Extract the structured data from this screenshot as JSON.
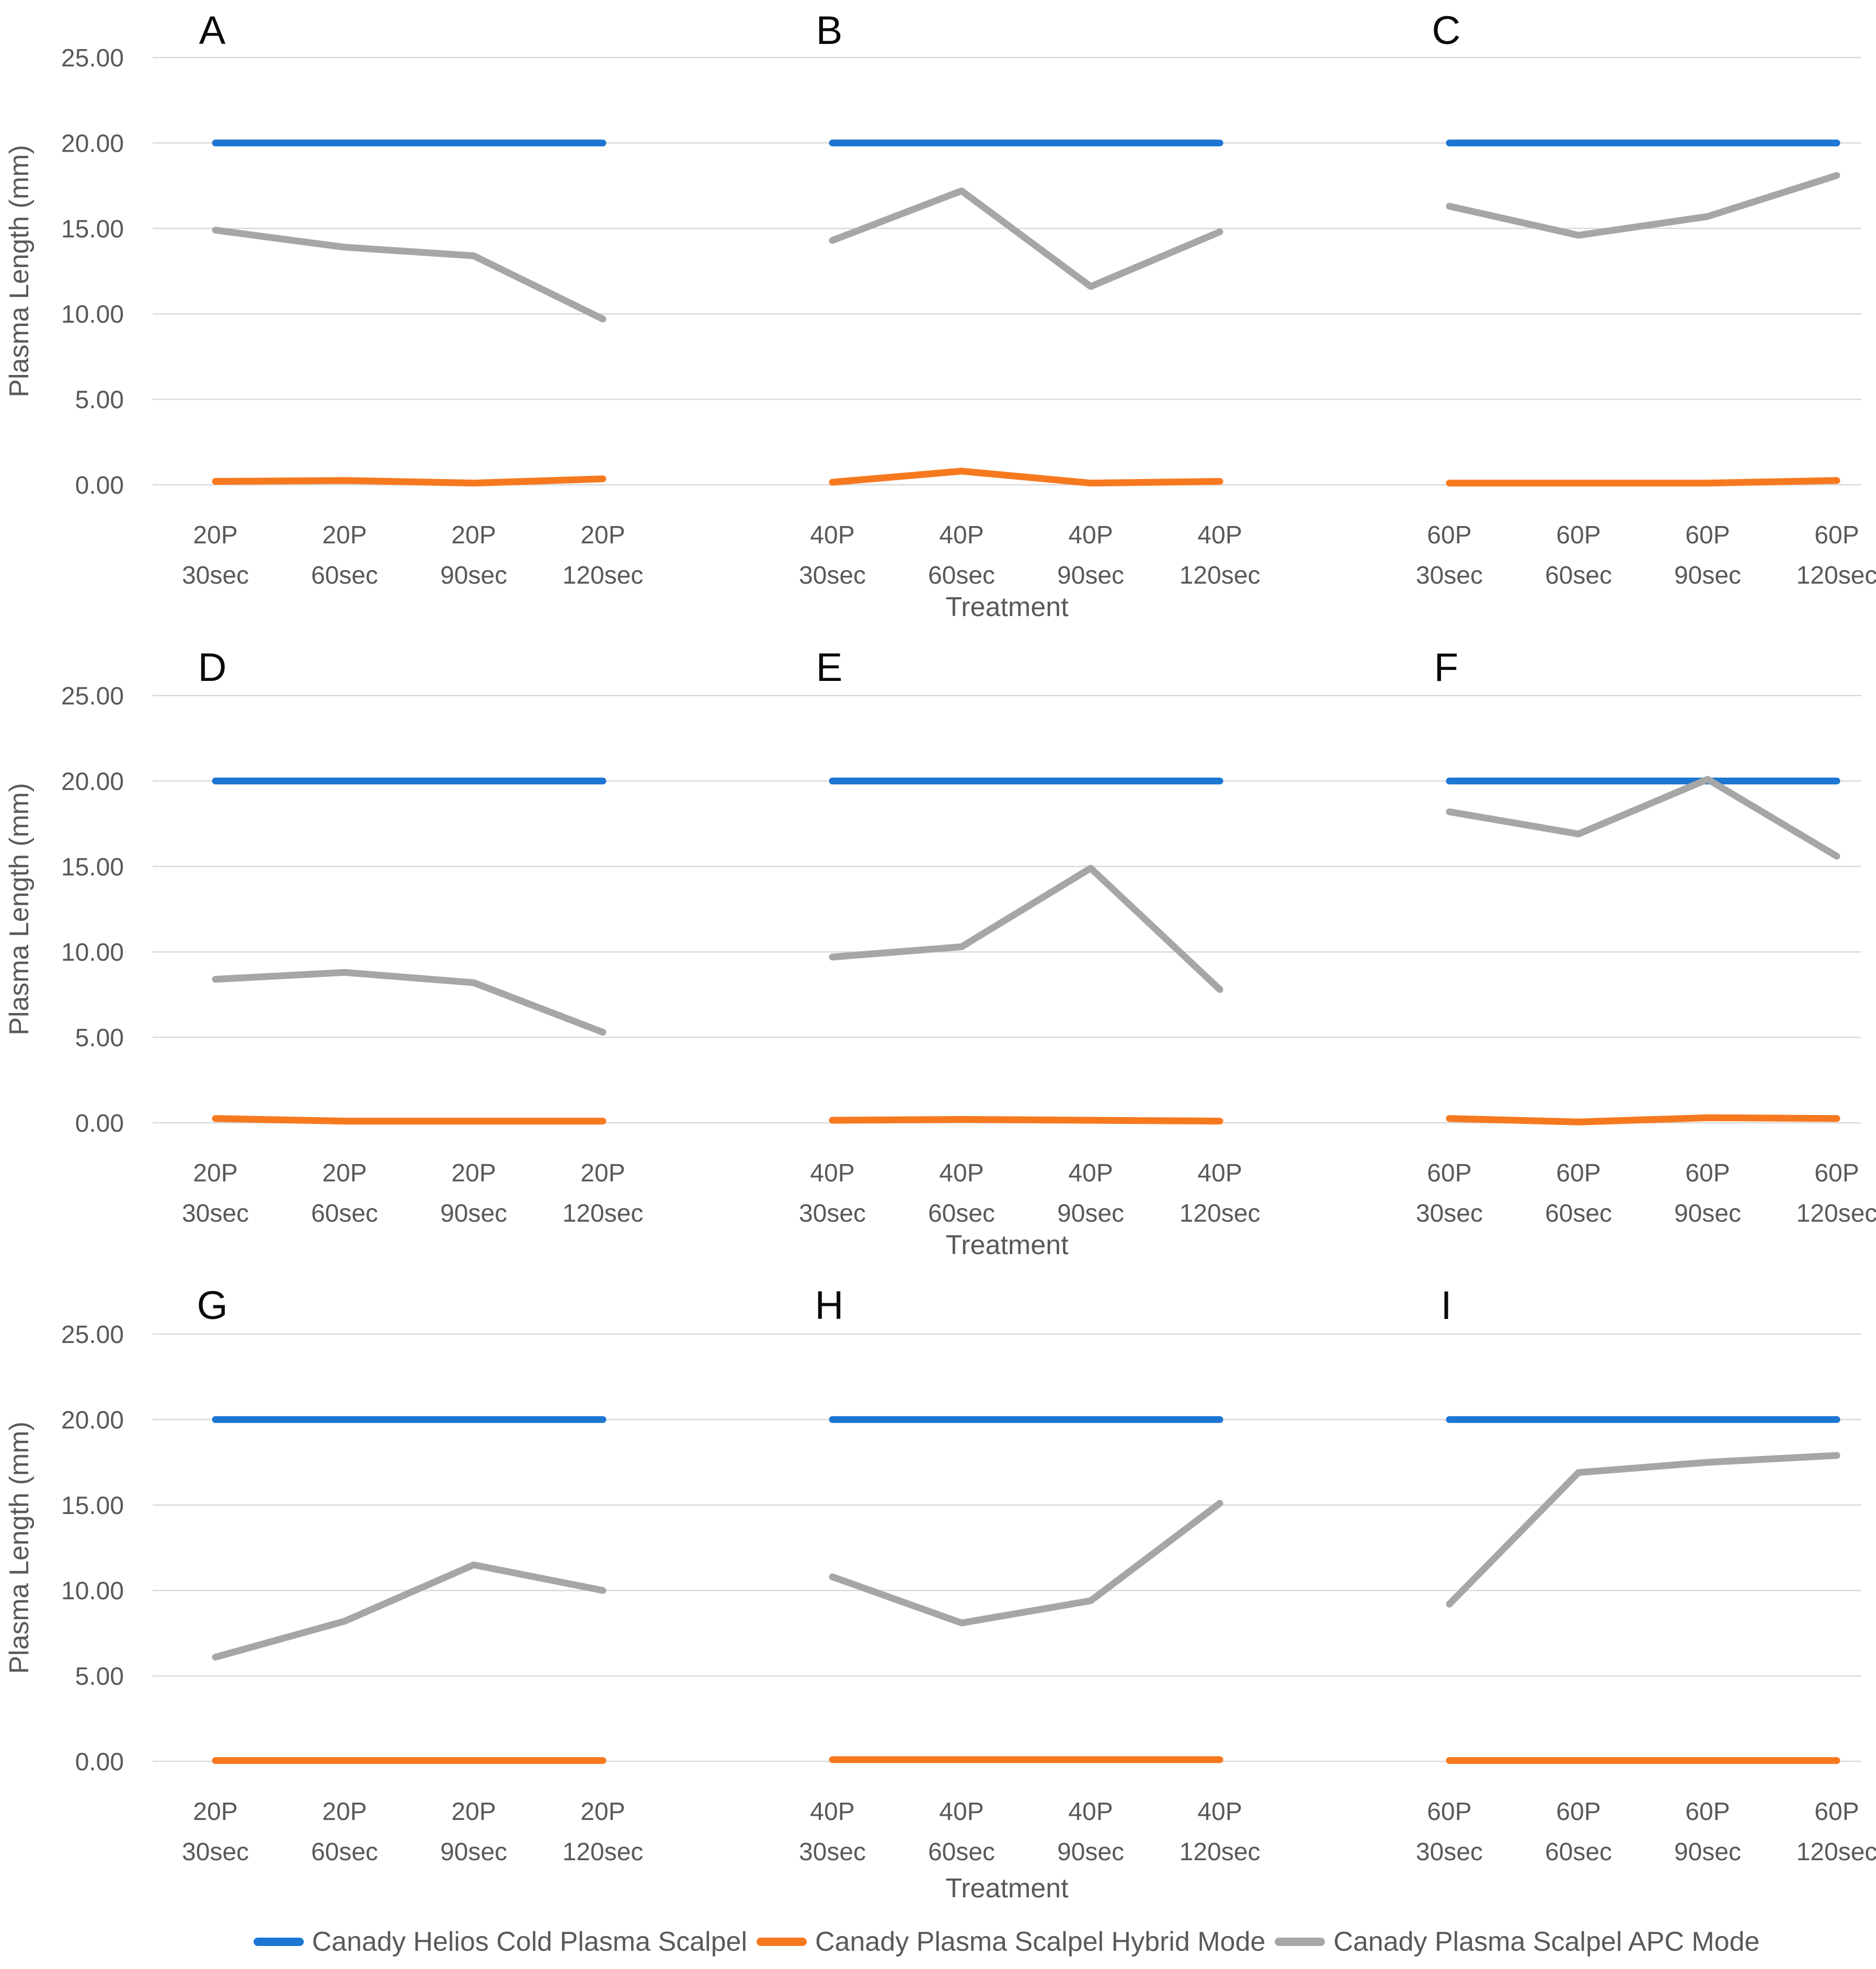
{
  "figure": {
    "ylabel": "Plasma Length (mm)",
    "xlabel": "Treatment",
    "y_ticks": [
      "25.00",
      "20.00",
      "15.00",
      "10.00",
      "5.00",
      "0.00"
    ],
    "y_tick_values": [
      25,
      20,
      15,
      10,
      5,
      0
    ],
    "ylim": [
      0,
      25
    ],
    "grid": "horizontal",
    "legend_position": "bottom",
    "gridline_color": "#D9D9D9",
    "axis_text_color": "#595959"
  },
  "legend": {
    "items": [
      {
        "label": "Canady Helios Cold Plasma Scalpel",
        "color": "#1C76D2"
      },
      {
        "label": "Canady Plasma Scalpel Hybrid Mode",
        "color": "#F7791F"
      },
      {
        "label": "Canady Plasma Scalpel APC Mode",
        "color": "#A6A6A6"
      }
    ]
  },
  "chart_data": [
    {
      "panel": "A",
      "type": "line",
      "categories": [
        "20P 30sec",
        "20P 60sec",
        "20P 90sec",
        "20P 120sec"
      ],
      "xlabel": "Treatment",
      "ylabel": "Plasma Length (mm)",
      "ylim": [
        0,
        25
      ],
      "series": [
        {
          "name": "Canady Helios Cold Plasma Scalpel",
          "values": [
            20,
            20,
            20,
            20
          ]
        },
        {
          "name": "Canady Plasma Scalpel Hybrid Mode",
          "values": [
            0.2,
            0.25,
            0.1,
            0.35
          ]
        },
        {
          "name": "Canady Plasma Scalpel APC Mode",
          "values": [
            14.9,
            13.9,
            13.4,
            9.7
          ]
        }
      ]
    },
    {
      "panel": "B",
      "type": "line",
      "categories": [
        "40P 30sec",
        "40P 60sec",
        "40P 90sec",
        "40P 120sec"
      ],
      "xlabel": "Treatment",
      "ylabel": "Plasma Length (mm)",
      "ylim": [
        0,
        25
      ],
      "series": [
        {
          "name": "Canady Helios Cold Plasma Scalpel",
          "values": [
            20,
            20,
            20,
            20
          ]
        },
        {
          "name": "Canady Plasma Scalpel Hybrid Mode",
          "values": [
            0.15,
            0.8,
            0.1,
            0.2
          ]
        },
        {
          "name": "Canady Plasma Scalpel APC Mode",
          "values": [
            14.3,
            17.2,
            11.6,
            14.8
          ]
        }
      ]
    },
    {
      "panel": "C",
      "type": "line",
      "categories": [
        "60P 30sec",
        "60P 60sec",
        "60P 90sec",
        "60P 120sec"
      ],
      "xlabel": "Treatment",
      "ylabel": "Plasma Length (mm)",
      "ylim": [
        0,
        25
      ],
      "series": [
        {
          "name": "Canady Helios Cold Plasma Scalpel",
          "values": [
            20,
            20,
            20,
            20
          ]
        },
        {
          "name": "Canady Plasma Scalpel Hybrid Mode",
          "values": [
            0.1,
            0.1,
            0.1,
            0.25
          ]
        },
        {
          "name": "Canady Plasma Scalpel APC Mode",
          "values": [
            16.3,
            14.6,
            15.7,
            18.1
          ]
        }
      ]
    },
    {
      "panel": "D",
      "type": "line",
      "categories": [
        "20P 30sec",
        "20P 60sec",
        "20P 90sec",
        "20P 120sec"
      ],
      "xlabel": "Treatment",
      "ylabel": "Plasma Length (mm)",
      "ylim": [
        0,
        25
      ],
      "series": [
        {
          "name": "Canady Helios Cold Plasma Scalpel",
          "values": [
            20,
            20,
            20,
            20
          ]
        },
        {
          "name": "Canady Plasma Scalpel Hybrid Mode",
          "values": [
            0.25,
            0.1,
            0.1,
            0.1
          ]
        },
        {
          "name": "Canady Plasma Scalpel APC Mode",
          "values": [
            8.4,
            8.8,
            8.2,
            5.3
          ]
        }
      ]
    },
    {
      "panel": "E",
      "type": "line",
      "categories": [
        "40P 30sec",
        "40P 60sec",
        "40P 90sec",
        "40P 120sec"
      ],
      "xlabel": "Treatment",
      "ylabel": "Plasma Length (mm)",
      "ylim": [
        0,
        25
      ],
      "series": [
        {
          "name": "Canady Helios Cold Plasma Scalpel",
          "values": [
            20,
            20,
            20,
            20
          ]
        },
        {
          "name": "Canady Plasma Scalpel Hybrid Mode",
          "values": [
            0.15,
            0.2,
            0.15,
            0.1
          ]
        },
        {
          "name": "Canady Plasma Scalpel APC Mode",
          "values": [
            9.7,
            10.3,
            14.9,
            7.8
          ]
        }
      ]
    },
    {
      "panel": "F",
      "type": "line",
      "categories": [
        "60P 30sec",
        "60P 60sec",
        "60P 90sec",
        "60P 120sec"
      ],
      "xlabel": "Treatment",
      "ylabel": "Plasma Length (mm)",
      "ylim": [
        0,
        25
      ],
      "series": [
        {
          "name": "Canady Helios Cold Plasma Scalpel",
          "values": [
            20,
            20,
            20,
            20
          ]
        },
        {
          "name": "Canady Plasma Scalpel Hybrid Mode",
          "values": [
            0.25,
            0.05,
            0.3,
            0.25
          ]
        },
        {
          "name": "Canady Plasma Scalpel APC Mode",
          "values": [
            18.2,
            16.9,
            20.1,
            15.6
          ]
        }
      ]
    },
    {
      "panel": "G",
      "type": "line",
      "categories": [
        "20P 30sec",
        "20P 60sec",
        "20P 90sec",
        "20P 120sec"
      ],
      "xlabel": "Treatment",
      "ylabel": "Plasma Length (mm)",
      "ylim": [
        0,
        25
      ],
      "series": [
        {
          "name": "Canady Helios Cold Plasma Scalpel",
          "values": [
            20,
            20,
            20,
            20
          ]
        },
        {
          "name": "Canady Plasma Scalpel Hybrid Mode",
          "values": [
            0.05,
            0.05,
            0.05,
            0.05
          ]
        },
        {
          "name": "Canady Plasma Scalpel APC Mode",
          "values": [
            6.1,
            8.2,
            11.5,
            10.0
          ]
        }
      ]
    },
    {
      "panel": "H",
      "type": "line",
      "categories": [
        "40P 30sec",
        "40P 60sec",
        "40P 90sec",
        "40P 120sec"
      ],
      "xlabel": "Treatment",
      "ylabel": "Plasma Length (mm)",
      "ylim": [
        0,
        25
      ],
      "series": [
        {
          "name": "Canady Helios Cold Plasma Scalpel",
          "values": [
            20,
            20,
            20,
            20
          ]
        },
        {
          "name": "Canady Plasma Scalpel Hybrid Mode",
          "values": [
            0.1,
            0.1,
            0.1,
            0.1
          ]
        },
        {
          "name": "Canady Plasma Scalpel APC Mode",
          "values": [
            10.8,
            8.1,
            9.4,
            15.1
          ]
        }
      ]
    },
    {
      "panel": "I",
      "type": "line",
      "categories": [
        "60P 30sec",
        "60P 60sec",
        "60P 90sec",
        "60P 120sec"
      ],
      "xlabel": "Treatment",
      "ylabel": "Plasma Length (mm)",
      "ylim": [
        0,
        25
      ],
      "series": [
        {
          "name": "Canady Helios Cold Plasma Scalpel",
          "values": [
            20,
            20,
            20,
            20
          ]
        },
        {
          "name": "Canady Plasma Scalpel Hybrid Mode",
          "values": [
            0.05,
            0.05,
            0.05,
            0.05
          ]
        },
        {
          "name": "Canady Plasma Scalpel APC Mode",
          "values": [
            9.2,
            16.9,
            17.5,
            17.9
          ]
        }
      ]
    }
  ]
}
